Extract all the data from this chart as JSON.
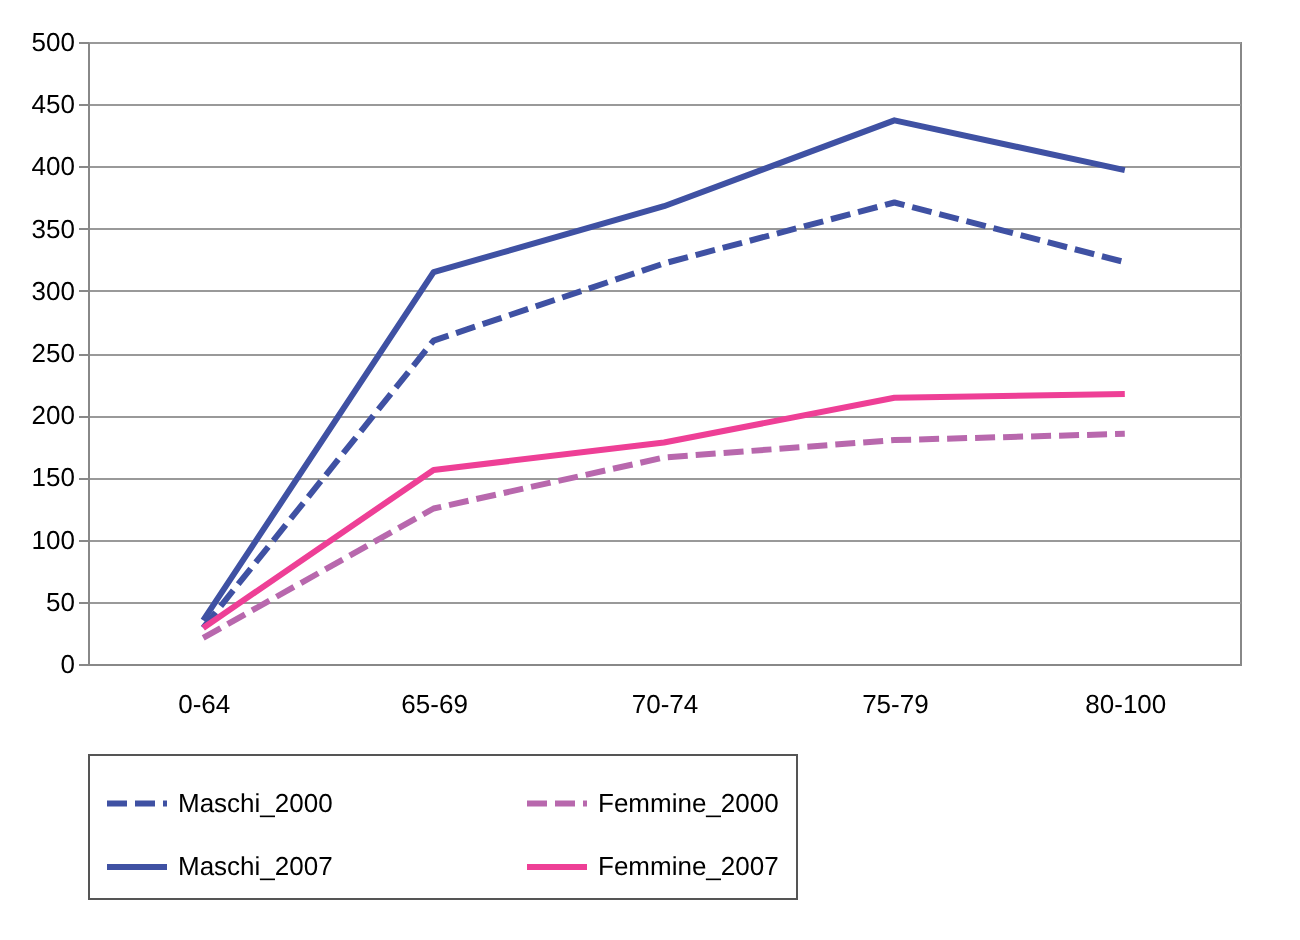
{
  "chart_data": {
    "type": "line",
    "categories": [
      "0-64",
      "65-69",
      "70-74",
      "75-79",
      "80-100"
    ],
    "series": [
      {
        "name": "Maschi_2000",
        "color": "#3f51a3",
        "line_style": "dashed",
        "values": [
          29,
          260,
          322,
          371,
          323
        ]
      },
      {
        "name": "Femmine_2000",
        "color": "#b868ad",
        "line_style": "dashed",
        "values": [
          21,
          125,
          166,
          180,
          185
        ]
      },
      {
        "name": "Maschi_2007",
        "color": "#3f51a3",
        "line_style": "solid",
        "values": [
          35,
          315,
          368,
          437,
          397
        ]
      },
      {
        "name": "Femmine_2007",
        "color": "#ee3f96",
        "line_style": "solid",
        "values": [
          29,
          156,
          178,
          214,
          217
        ]
      }
    ],
    "ylim": [
      0,
      500
    ],
    "yticks": [
      0,
      50,
      100,
      150,
      200,
      250,
      300,
      350,
      400,
      450,
      500
    ],
    "grid": "y",
    "legend": "bottom",
    "marker": "none"
  }
}
